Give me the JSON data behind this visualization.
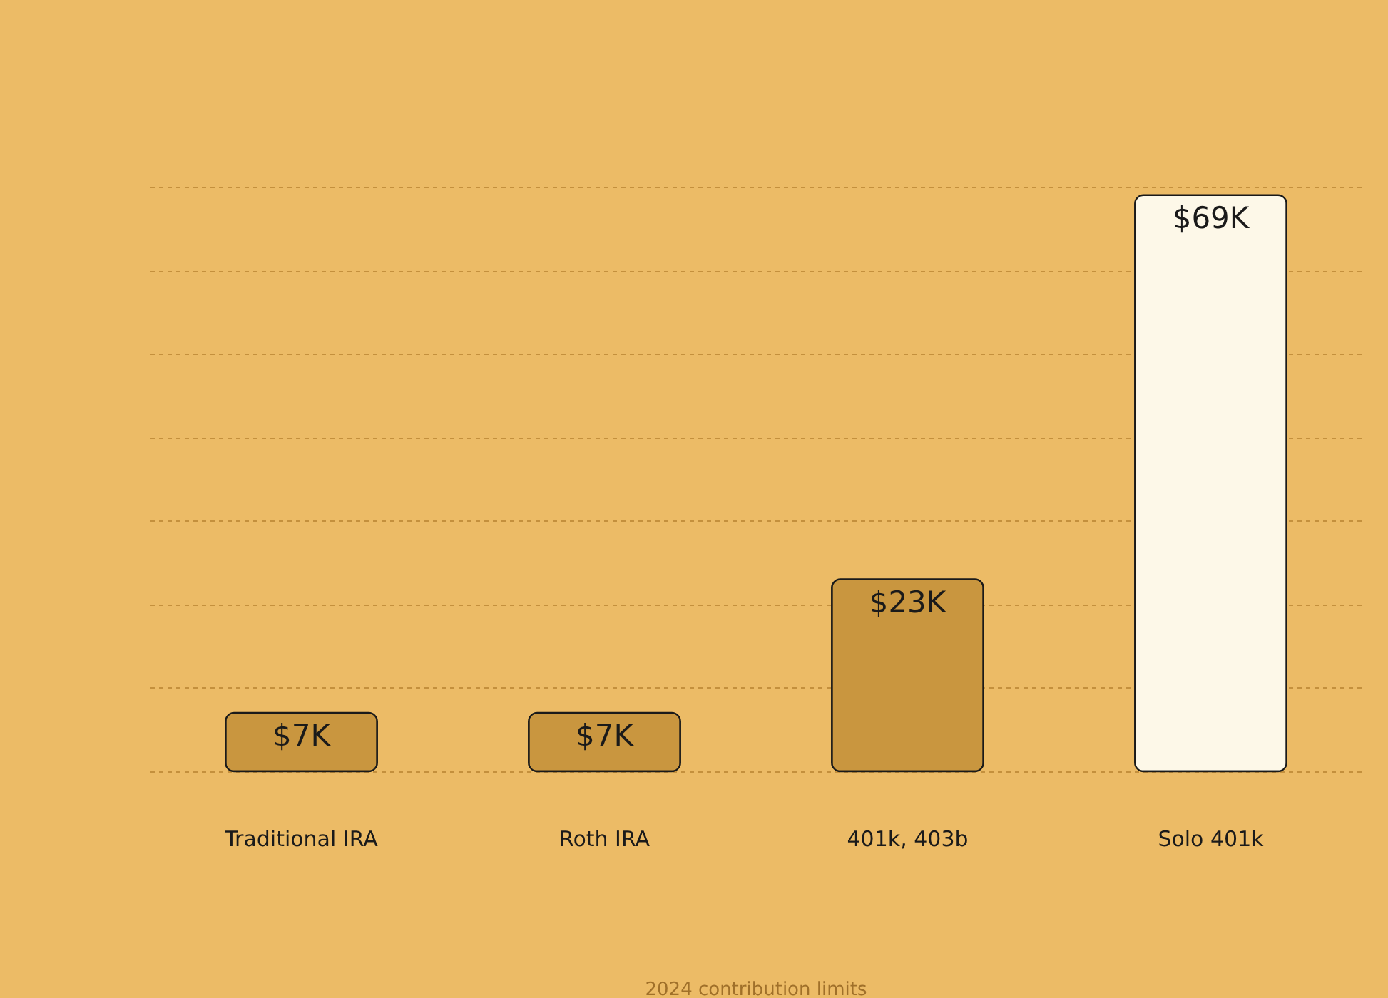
{
  "chart_data": {
    "type": "bar",
    "categories": [
      "Traditional IRA",
      "Roth IRA",
      "401k, 403b",
      "Solo 401k"
    ],
    "values": [
      7,
      7,
      23,
      69
    ],
    "value_labels": [
      "$7K",
      "$7K",
      "$23K",
      "$69K"
    ],
    "colors": [
      "#c9963f",
      "#c9963f",
      "#c9963f",
      "#fdf8e8"
    ],
    "ylim": [
      0,
      70
    ],
    "yticks": [
      {
        "value": 0,
        "label": null
      },
      {
        "value": 10,
        "label": null
      },
      {
        "value": 20,
        "label": null
      },
      {
        "value": 30,
        "label": null
      },
      {
        "value": 40,
        "label": null
      },
      {
        "value": 50,
        "label": null
      },
      {
        "value": 60,
        "label": null
      },
      {
        "value": 70,
        "label": null
      }
    ],
    "tick_labels": "x",
    "grid": "y",
    "annotations": [
      "2024 contribution limits"
    ]
  }
}
